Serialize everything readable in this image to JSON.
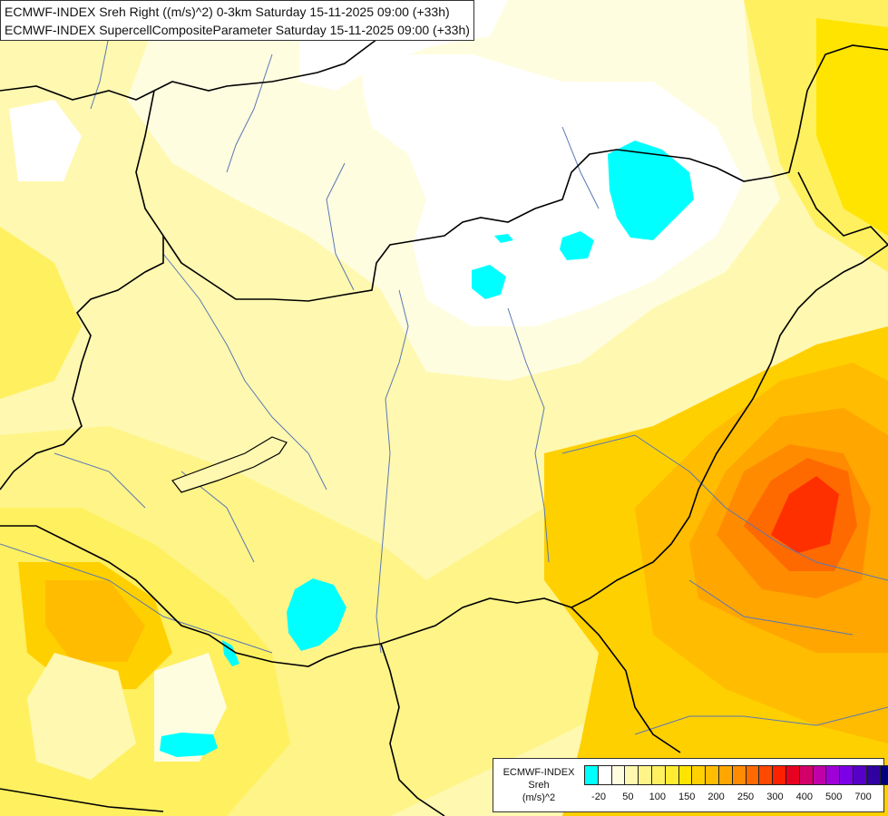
{
  "header": {
    "line1": "ECMWF-INDEX Sreh Right ((m/s)^2) 0-3km Saturday 15-11-2025 09:00 (+33h)",
    "line2": "ECMWF-INDEX SupercellCompositeParameter Saturday 15-11-2025 09:00 (+33h)"
  },
  "legend": {
    "label_line1": "ECMWF-INDEX",
    "label_line2": "Sreh",
    "label_line3": "(m/s)^2",
    "colors": [
      "#00ffff",
      "#ffffff",
      "#fffde0",
      "#fff8b0",
      "#fff488",
      "#fff060",
      "#ffec30",
      "#ffe400",
      "#ffd000",
      "#ffbc00",
      "#ffa600",
      "#ff8c00",
      "#ff6a00",
      "#ff4800",
      "#ff2000",
      "#e80020",
      "#d4006a",
      "#c000a8",
      "#a000d8",
      "#7c00e6",
      "#5600c8",
      "#3000a0",
      "#000080"
    ],
    "ticks": [
      {
        "label": "-20",
        "i": 1
      },
      {
        "label": "50",
        "i": 3
      },
      {
        "label": "100",
        "i": 5
      },
      {
        "label": "150",
        "i": 7
      },
      {
        "label": "200",
        "i": 9
      },
      {
        "label": "250",
        "i": 11
      },
      {
        "label": "300",
        "i": 13
      },
      {
        "label": "400",
        "i": 15
      },
      {
        "label": "500",
        "i": 17
      },
      {
        "label": "700",
        "i": 19
      }
    ]
  },
  "map": {
    "colors": {
      "cyan": "#00ffff",
      "white": "#ffffff",
      "very_light": "#fffde0",
      "light": "#fff8b0",
      "pale": "#fff488",
      "yellow": "#fff060",
      "yellow2": "#ffe400",
      "gold": "#ffd000",
      "amber": "#ffbc00",
      "orange": "#ffa600",
      "dark_orange": "#ff8c00",
      "red_orange": "#ff6a00",
      "red": "#ff3000",
      "border": "#000000",
      "river": "#5a78b4"
    }
  }
}
